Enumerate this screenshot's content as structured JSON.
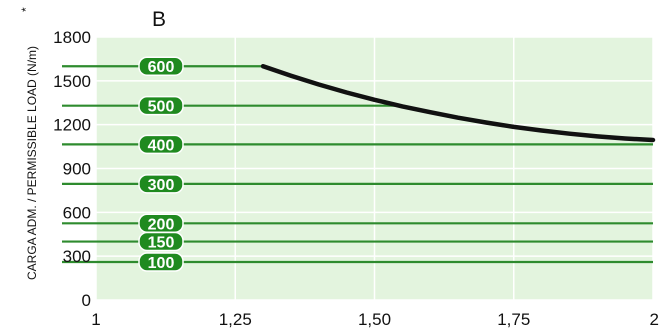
{
  "chart_data": {
    "type": "line",
    "panel_label": "B",
    "ylabel": "CARGA ADM. / PERMISSIBLE LOAD (N/m)*",
    "xlim": [
      1,
      2
    ],
    "ylim": [
      0,
      1800
    ],
    "x_tick_labels": [
      "1",
      "1,25",
      "1,50",
      "1,75",
      "2"
    ],
    "x_ticks": [
      1,
      1.25,
      1.5,
      1.75,
      2
    ],
    "y_tick_labels": [
      "0",
      "300",
      "600",
      "900",
      "1200",
      "1500",
      "1800"
    ],
    "y_ticks": [
      0,
      300,
      600,
      900,
      1200,
      1500,
      1800
    ],
    "grid": true,
    "reference_lines": [
      {
        "label": "600",
        "y": 1600,
        "x_end": 1.3
      },
      {
        "label": "500",
        "y": 1330,
        "x_end": 1.55
      },
      {
        "label": "400",
        "y": 1065,
        "x_end": 2
      },
      {
        "label": "300",
        "y": 795,
        "x_end": 2
      },
      {
        "label": "200",
        "y": 525,
        "x_end": 2
      },
      {
        "label": "150",
        "y": 400,
        "x_end": 2
      },
      {
        "label": "100",
        "y": 260,
        "x_end": 2
      }
    ],
    "series": [
      {
        "x": [
          1.3,
          1.35,
          1.4,
          1.45,
          1.5,
          1.55,
          1.6,
          1.65,
          1.7,
          1.75,
          1.8,
          1.85,
          1.9,
          1.95,
          2.0
        ],
        "y": [
          1600,
          1535,
          1475,
          1420,
          1370,
          1325,
          1285,
          1248,
          1215,
          1185,
          1160,
          1138,
          1120,
          1105,
          1095
        ]
      }
    ],
    "colors": {
      "plot_background": "#e3f4de",
      "grid": "#ffffff",
      "reference_line": "#2e8b2e",
      "pill_fill": "#1f8a1f",
      "pill_stroke": "#ffffff",
      "curve": "#111111"
    }
  }
}
